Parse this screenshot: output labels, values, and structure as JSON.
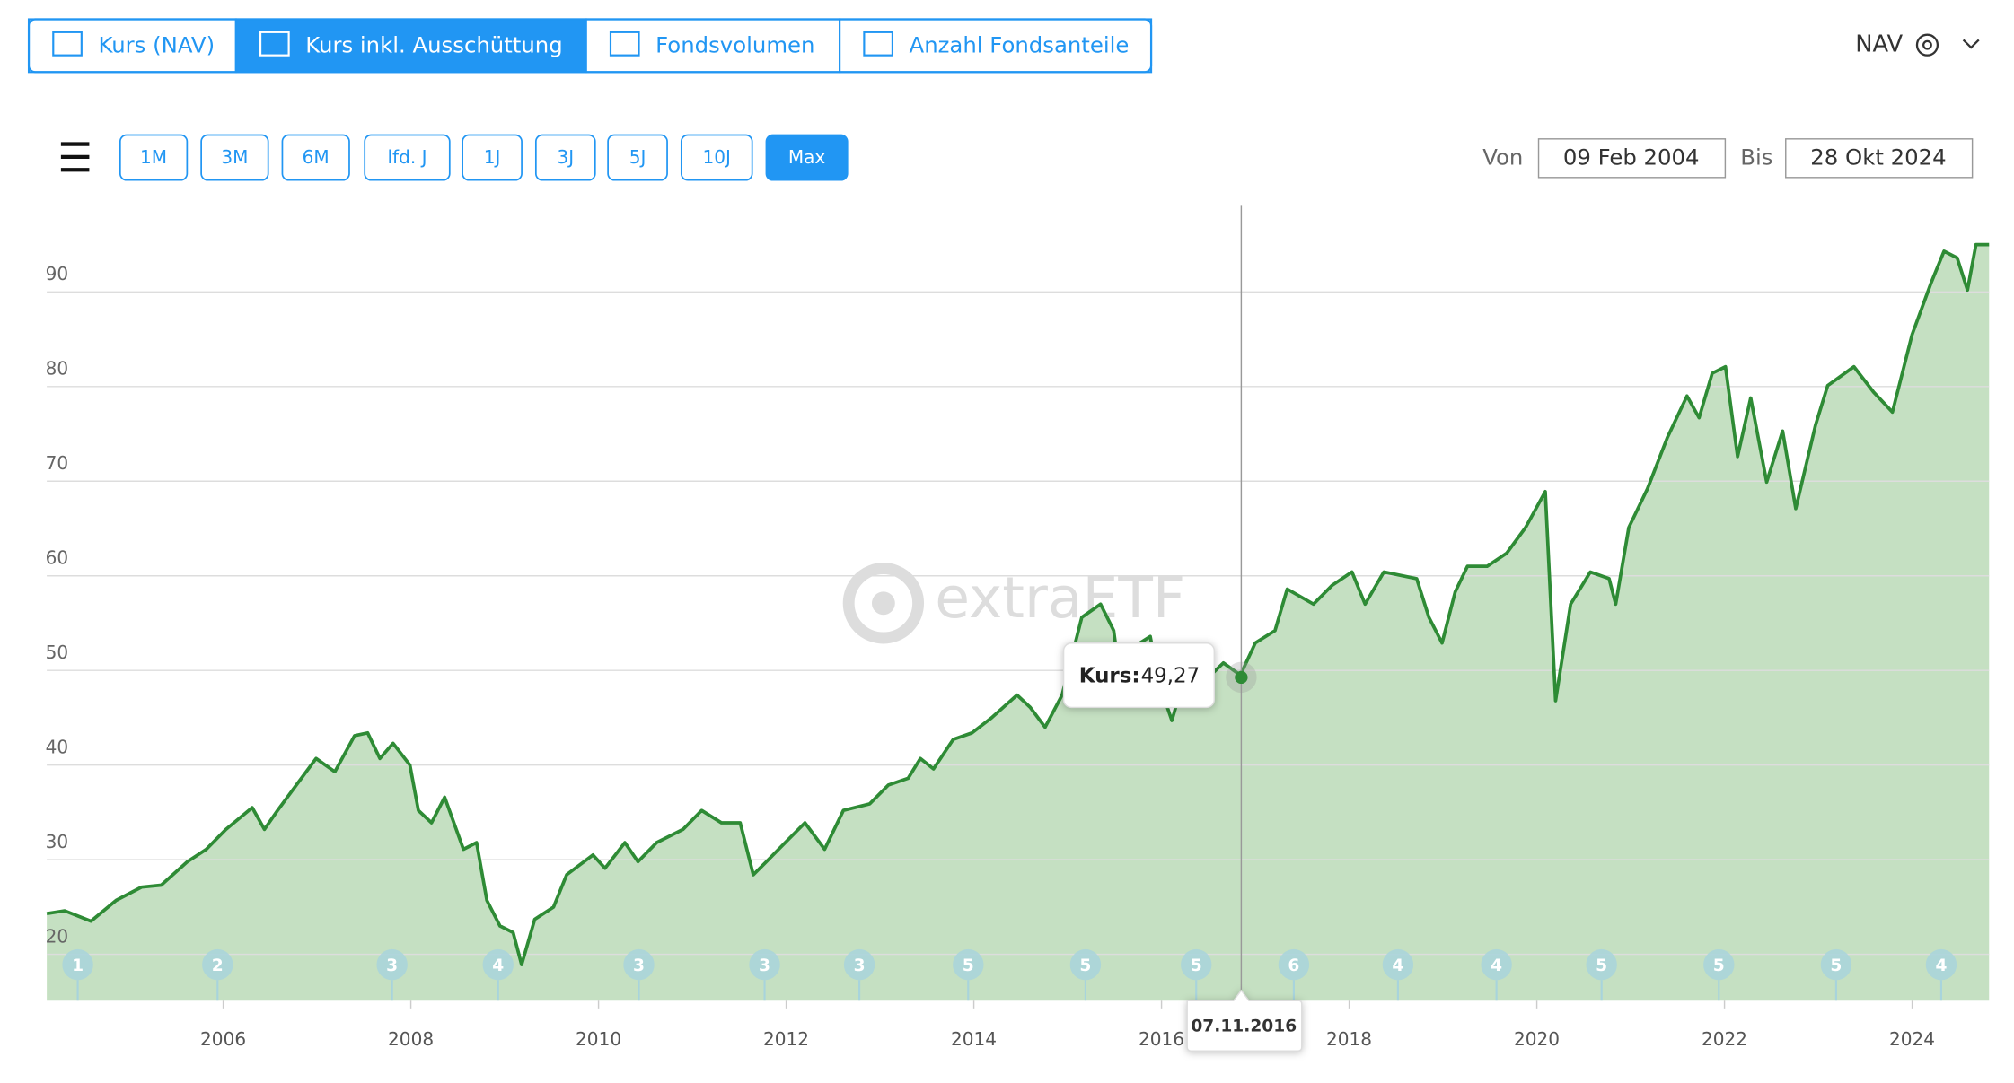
{
  "tabs": [
    {
      "label": "Kurs (NAV)"
    },
    {
      "label": "Kurs inkl. Ausschüttung"
    },
    {
      "label": "Fondsvolumen"
    },
    {
      "label": "Anzahl Fondsanteile"
    }
  ],
  "active_tab": 1,
  "currency_selector": "NAV",
  "ranges": [
    "1M",
    "3M",
    "6M",
    "lfd. J",
    "1J",
    "3J",
    "5J",
    "10J",
    "Max"
  ],
  "active_range": 8,
  "date_from_label": "Von",
  "date_from": "09 Feb 2004",
  "date_to_label": "Bis",
  "date_to": "28 Okt 2024",
  "watermark": "extraETF",
  "chart_data": {
    "type": "line",
    "x": [
      2004.12,
      2004.31,
      2004.59,
      2004.86,
      2005.13,
      2005.34,
      2005.62,
      2005.82,
      2006.03,
      2006.31,
      2006.44,
      2006.58,
      2006.78,
      2006.99,
      2007.19,
      2007.4,
      2007.54,
      2007.67,
      2007.81,
      2007.99,
      2008.08,
      2008.22,
      2008.36,
      2008.56,
      2008.7,
      2008.81,
      2008.95,
      2009.09,
      2009.18,
      2009.32,
      2009.52,
      2009.66,
      2009.94,
      2010.07,
      2010.28,
      2010.42,
      2010.62,
      2010.9,
      2011.1,
      2011.31,
      2011.51,
      2011.65,
      2011.79,
      2011.99,
      2012.2,
      2012.41,
      2012.61,
      2012.89,
      2013.09,
      2013.3,
      2013.43,
      2013.57,
      2013.78,
      2013.98,
      2014.19,
      2014.46,
      2014.6,
      2014.76,
      2014.94,
      2015.15,
      2015.35,
      2015.49,
      2015.59,
      2015.77,
      2015.88,
      2015.97,
      2016.11,
      2016.25,
      2016.45,
      2016.66,
      2016.84,
      2017.0,
      2017.21,
      2017.34,
      2017.62,
      2017.82,
      2018.03,
      2018.17,
      2018.37,
      2018.72,
      2018.85,
      2018.99,
      2019.13,
      2019.26,
      2019.47,
      2019.68,
      2019.88,
      2020.09,
      2020.2,
      2020.36,
      2020.57,
      2020.77,
      2020.84,
      2020.98,
      2021.18,
      2021.39,
      2021.6,
      2021.73,
      2021.87,
      2022.01,
      2022.14,
      2022.28,
      2022.45,
      2022.62,
      2022.76,
      2022.97,
      2023.1,
      2023.38,
      2023.59,
      2023.79,
      2024.0,
      2024.2,
      2024.34,
      2024.48,
      2024.59,
      2024.68,
      2024.82
    ],
    "series": [
      {
        "color": "#2e8b35",
        "fill": "#c5e0c2",
        "values": [
          24.3,
          24.6,
          23.5,
          25.7,
          27.1,
          27.3,
          29.8,
          31.1,
          33.2,
          35.5,
          33.2,
          35.2,
          37.9,
          40.7,
          39.3,
          43.1,
          43.4,
          40.7,
          42.3,
          40.0,
          35.2,
          33.9,
          36.6,
          31.1,
          31.8,
          25.7,
          23.0,
          22.3,
          18.9,
          23.7,
          25.0,
          28.4,
          30.5,
          29.1,
          31.8,
          29.8,
          31.8,
          33.2,
          35.2,
          33.9,
          33.9,
          28.4,
          29.8,
          31.8,
          33.9,
          31.1,
          35.2,
          35.9,
          37.9,
          38.6,
          40.7,
          39.6,
          42.7,
          43.4,
          45.0,
          47.4,
          46.1,
          44.0,
          47.4,
          55.6,
          57.0,
          54.2,
          46.8,
          52.9,
          53.6,
          48.8,
          44.7,
          49.5,
          48.8,
          50.8,
          49.5,
          52.9,
          54.2,
          58.6,
          57.0,
          59.0,
          60.4,
          57.0,
          60.4,
          59.7,
          55.6,
          52.9,
          58.3,
          61.0,
          61.0,
          62.4,
          65.1,
          68.9,
          46.8,
          57.0,
          60.4,
          59.7,
          57.0,
          65.1,
          69.2,
          74.6,
          79.0,
          76.7,
          81.4,
          82.1,
          72.6,
          78.8,
          69.9,
          75.3,
          67.1,
          75.9,
          80.1,
          82.1,
          79.4,
          77.3,
          85.5,
          90.9,
          94.3,
          93.6,
          90.2,
          95.0,
          95.0
        ]
      }
    ],
    "xlim": [
      2004.12,
      2024.82
    ],
    "ylim": [
      15.1,
      99.1
    ],
    "xticks": [
      2006,
      2008,
      2010,
      2012,
      2014,
      2016,
      2018,
      2020,
      2022,
      2024
    ],
    "yticks": [
      20,
      30,
      40,
      50,
      60,
      70,
      80,
      90
    ],
    "grid": true,
    "tooltip": {
      "label": "Kurs:",
      "value": 49.27,
      "value_label": "49,27",
      "date": "07.11.2016",
      "x": 2016.85
    },
    "distributions": {
      "color": "#a8d4dc",
      "x": [
        2004.45,
        2005.94,
        2007.8,
        2008.93,
        2010.43,
        2011.77,
        2012.78,
        2013.94,
        2015.19,
        2016.37,
        2017.41,
        2018.52,
        2019.57,
        2020.69,
        2021.94,
        2023.19,
        2024.31
      ],
      "counts": [
        1,
        2,
        3,
        4,
        3,
        3,
        3,
        5,
        5,
        5,
        6,
        4,
        4,
        5,
        5,
        5,
        4
      ]
    }
  }
}
